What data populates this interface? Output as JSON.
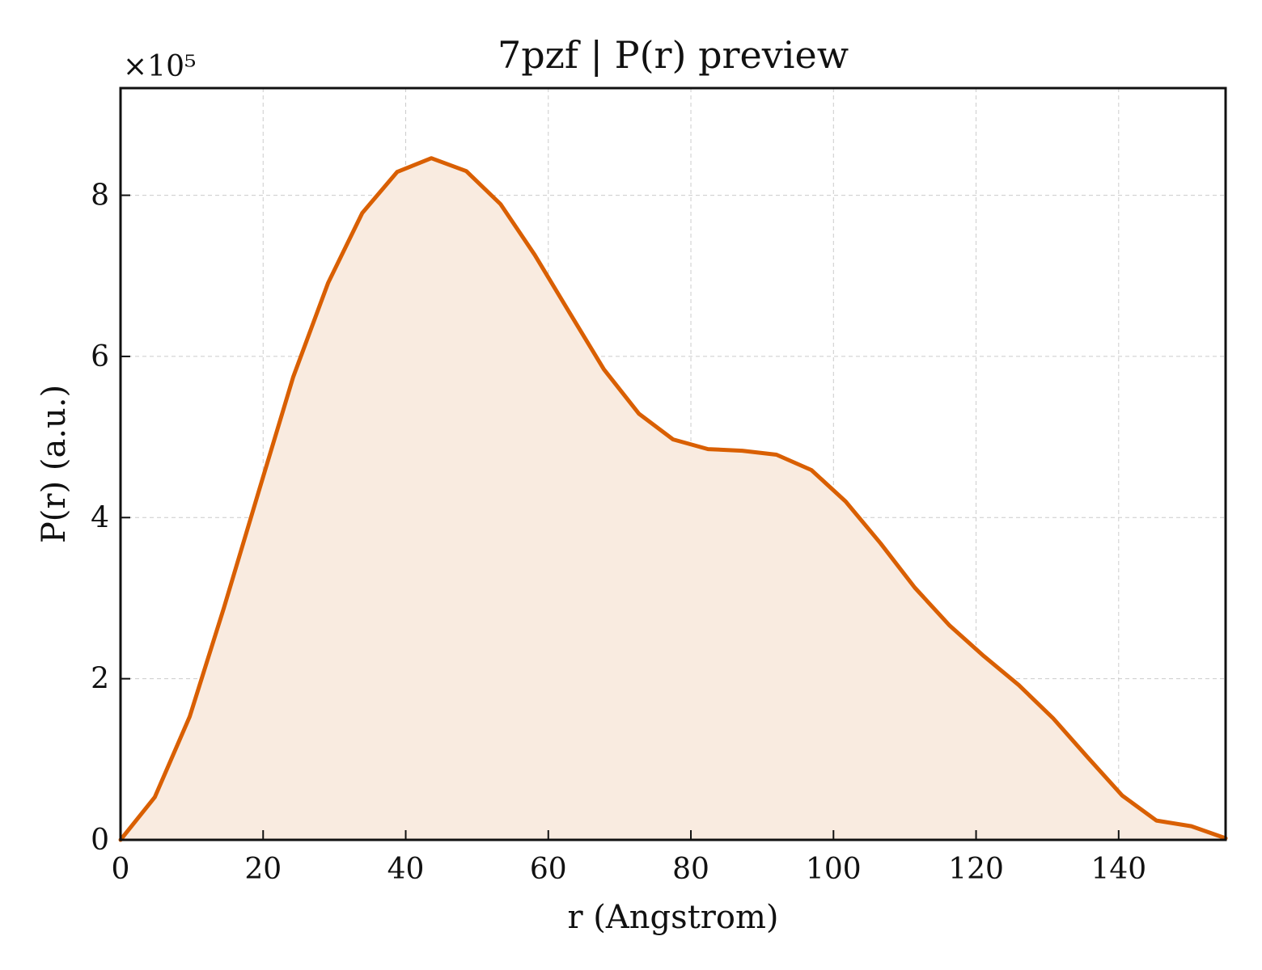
{
  "chart_data": {
    "type": "area",
    "title": "7pzf | P(r) preview",
    "xlabel": "r (Angstrom)",
    "ylabel": "P(r) (a.u.)",
    "y_multiplier": "×10⁵",
    "xlim": [
      0,
      155
    ],
    "ylim": [
      0,
      9.33
    ],
    "xticks": [
      0,
      20,
      40,
      60,
      80,
      100,
      120,
      140
    ],
    "yticks": [
      0,
      2,
      4,
      6,
      8
    ],
    "grid": true,
    "line_color": "#d95f02",
    "fill_color": "#f9ebe0",
    "series": [
      {
        "x": [
          0,
          4.8,
          9.7,
          14.5,
          19.4,
          24.2,
          29.1,
          33.9,
          38.8,
          43.6,
          48.5,
          53.3,
          58.1,
          63.0,
          67.8,
          72.7,
          77.5,
          82.4,
          87.2,
          92.0,
          96.9,
          101.7,
          106.6,
          111.4,
          116.3,
          121.1,
          126.0,
          130.8,
          135.6,
          140.5,
          145.3,
          150.2,
          155.0
        ],
        "values": [
          0.0,
          0.53,
          1.53,
          2.88,
          4.33,
          5.74,
          6.91,
          7.78,
          8.29,
          8.46,
          8.3,
          7.89,
          7.26,
          6.54,
          5.84,
          5.29,
          4.97,
          4.85,
          4.83,
          4.78,
          4.59,
          4.2,
          3.68,
          3.13,
          2.66,
          2.28,
          1.92,
          1.51,
          1.03,
          0.55,
          0.24,
          0.17,
          0.02
        ]
      }
    ]
  }
}
